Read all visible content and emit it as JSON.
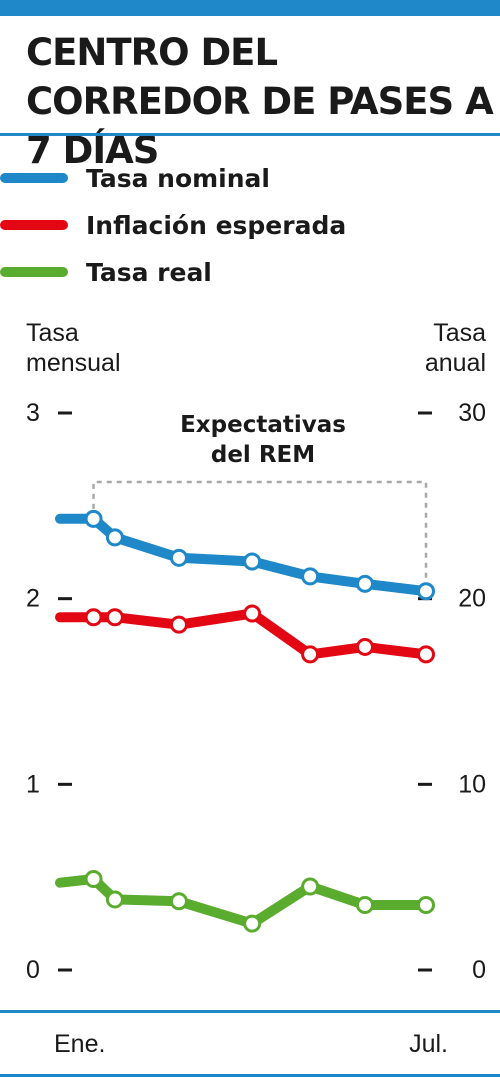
{
  "title": "CENTRO DEL CORREDOR DE PASES A 7 DÍAS",
  "colors": {
    "accent": "#1e88c8",
    "nominal": "#1e88c8",
    "inflation": "#e30613",
    "real": "#5aac2e"
  },
  "legend": [
    {
      "label": "Tasa nominal",
      "color": "#1e88c8"
    },
    {
      "label": "Inflación esperada",
      "color": "#e30613"
    },
    {
      "label": "Tasa real",
      "color": "#5aac2e"
    }
  ],
  "chart_data": {
    "type": "line",
    "ylabel_left": "Tasa mensual",
    "ylabel_right": "Tasa anual",
    "ylim_left": [
      0,
      3
    ],
    "ylim_right": [
      0,
      30
    ],
    "yticks_left": [
      "0",
      "1",
      "2",
      "3"
    ],
    "yticks_right": [
      "0",
      "10",
      "20",
      "30"
    ],
    "x_labels": [
      "Ene.",
      "Jul."
    ],
    "annotation": "Expectativas del REM",
    "series": [
      {
        "name": "Tasa nominal",
        "color": "#1e88c8",
        "values": [
          2.43,
          2.43,
          2.33,
          2.22,
          2.2,
          2.12,
          2.08,
          2.04
        ],
        "x": [
          0,
          0.55,
          0.9,
          1.95,
          3.15,
          4.1,
          5.0,
          6.0
        ]
      },
      {
        "name": "Inflación esperada",
        "color": "#e30613",
        "values": [
          1.9,
          1.9,
          1.9,
          1.86,
          1.92,
          1.7,
          1.74,
          1.7
        ],
        "x": [
          0,
          0.55,
          0.9,
          1.95,
          3.15,
          4.1,
          5.0,
          6.0
        ]
      },
      {
        "name": "Tasa real",
        "color": "#5aac2e",
        "values": [
          0.47,
          0.49,
          0.38,
          0.37,
          0.25,
          0.45,
          0.35,
          0.35
        ],
        "x": [
          0,
          0.55,
          0.9,
          1.95,
          3.15,
          4.1,
          5.0,
          6.0
        ]
      }
    ],
    "rem_start_index": 1
  }
}
